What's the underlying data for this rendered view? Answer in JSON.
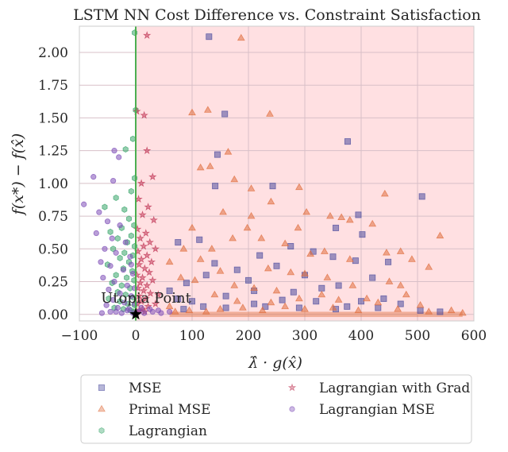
{
  "chart_data": {
    "type": "scatter",
    "title": "LSTM NN Cost Difference vs. Constraint Satisfaction",
    "xlabel": "λ̂ · g(x̂)",
    "ylabel": "f(x*) − f(x̂)",
    "xlim": [
      -100,
      600
    ],
    "ylim": [
      -0.05,
      2.2
    ],
    "xticks": [
      -100,
      0,
      100,
      200,
      300,
      400,
      500,
      600
    ],
    "yticks": [
      0.0,
      0.25,
      0.5,
      0.75,
      1.0,
      1.25,
      1.5,
      1.75,
      2.0
    ],
    "xtick_labels": [
      "−100",
      "0",
      "100",
      "200",
      "300",
      "400",
      "500",
      "600"
    ],
    "ytick_labels": [
      "0.00",
      "0.25",
      "0.50",
      "0.75",
      "1.00",
      "1.25",
      "1.50",
      "1.75",
      "2.00"
    ],
    "grid": true,
    "infeasible_region": {
      "x_from": 0,
      "x_to": 600,
      "color": "#ffe0e2"
    },
    "vertical_line": {
      "x": 0,
      "color": "#4caf50"
    },
    "annotation": {
      "text": "Utopia Point",
      "x": 0,
      "y": 0
    },
    "legend_position": "below",
    "series": [
      {
        "name": "MSE",
        "marker": "square",
        "color": "#4c4c9e",
        "points": [
          [
            130,
            2.12
          ],
          [
            158,
            1.53
          ],
          [
            376,
            1.32
          ],
          [
            145,
            1.22
          ],
          [
            243,
            0.98
          ],
          [
            141,
            0.98
          ],
          [
            508,
            0.9
          ],
          [
            395,
            0.76
          ],
          [
            355,
            0.66
          ],
          [
            402,
            0.61
          ],
          [
            75,
            0.55
          ],
          [
            113,
            0.57
          ],
          [
            220,
            0.45
          ],
          [
            315,
            0.48
          ],
          [
            350,
            0.44
          ],
          [
            390,
            0.41
          ],
          [
            275,
            0.52
          ],
          [
            250,
            0.37
          ],
          [
            180,
            0.34
          ],
          [
            140,
            0.39
          ],
          [
            90,
            0.24
          ],
          [
            420,
            0.28
          ],
          [
            448,
            0.4
          ],
          [
            330,
            0.2
          ],
          [
            360,
            0.22
          ],
          [
            280,
            0.17
          ],
          [
            210,
            0.18
          ],
          [
            160,
            0.14
          ],
          [
            440,
            0.12
          ],
          [
            470,
            0.08
          ],
          [
            400,
            0.1
          ],
          [
            320,
            0.1
          ],
          [
            260,
            0.11
          ],
          [
            100,
            0.1
          ],
          [
            75,
            0.12
          ],
          [
            60,
            0.18
          ],
          [
            125,
            0.3
          ],
          [
            200,
            0.26
          ],
          [
            300,
            0.3
          ],
          [
            375,
            0.06
          ],
          [
            505,
            0.03
          ],
          [
            540,
            0.02
          ],
          [
            430,
            0.05
          ],
          [
            355,
            0.04
          ],
          [
            290,
            0.05
          ],
          [
            230,
            0.06
          ],
          [
            160,
            0.05
          ],
          [
            120,
            0.06
          ],
          [
            85,
            0.04
          ],
          [
            210,
            0.08
          ]
        ]
      },
      {
        "name": "Primal MSE",
        "marker": "triangle",
        "color": "#e07040",
        "points": [
          [
            187,
            2.11
          ],
          [
            128,
            1.56
          ],
          [
            100,
            1.54
          ],
          [
            238,
            1.53
          ],
          [
            164,
            1.24
          ],
          [
            132,
            1.13
          ],
          [
            115,
            1.12
          ],
          [
            175,
            1.03
          ],
          [
            290,
            0.97
          ],
          [
            205,
            0.96
          ],
          [
            442,
            0.92
          ],
          [
            240,
            0.86
          ],
          [
            155,
            0.78
          ],
          [
            205,
            0.75
          ],
          [
            303,
            0.78
          ],
          [
            345,
            0.75
          ],
          [
            365,
            0.74
          ],
          [
            380,
            0.72
          ],
          [
            100,
            0.66
          ],
          [
            198,
            0.66
          ],
          [
            288,
            0.66
          ],
          [
            420,
            0.69
          ],
          [
            540,
            0.6
          ],
          [
            172,
            0.58
          ],
          [
            85,
            0.5
          ],
          [
            135,
            0.5
          ],
          [
            223,
            0.58
          ],
          [
            265,
            0.54
          ],
          [
            310,
            0.46
          ],
          [
            335,
            0.48
          ],
          [
            380,
            0.42
          ],
          [
            445,
            0.47
          ],
          [
            470,
            0.48
          ],
          [
            490,
            0.42
          ],
          [
            520,
            0.36
          ],
          [
            60,
            0.4
          ],
          [
            115,
            0.42
          ],
          [
            150,
            0.33
          ],
          [
            235,
            0.35
          ],
          [
            275,
            0.32
          ],
          [
            300,
            0.31
          ],
          [
            340,
            0.28
          ],
          [
            385,
            0.22
          ],
          [
            450,
            0.25
          ],
          [
            480,
            0.15
          ],
          [
            470,
            0.22
          ],
          [
            80,
            0.28
          ],
          [
            105,
            0.26
          ],
          [
            175,
            0.22
          ],
          [
            210,
            0.2
          ],
          [
            250,
            0.18
          ],
          [
            330,
            0.15
          ],
          [
            360,
            0.11
          ],
          [
            410,
            0.12
          ],
          [
            430,
            0.09
          ],
          [
            505,
            0.07
          ],
          [
            560,
            0.03
          ],
          [
            520,
            0.02
          ],
          [
            465,
            0.04
          ],
          [
            395,
            0.03
          ],
          [
            350,
            0.05
          ],
          [
            300,
            0.04
          ],
          [
            265,
            0.06
          ],
          [
            225,
            0.03
          ],
          [
            190,
            0.05
          ],
          [
            150,
            0.04
          ],
          [
            125,
            0.02
          ],
          [
            95,
            0.03
          ],
          [
            70,
            0.02
          ],
          [
            240,
            0.09
          ],
          [
            290,
            0.12
          ],
          [
            180,
            0.1
          ],
          [
            140,
            0.15
          ],
          [
            60,
            0.06
          ],
          [
            580,
            0.01
          ]
        ]
      },
      {
        "name": "Lagrangian",
        "marker": "hexagon",
        "color": "#3aa66b",
        "points": [
          [
            -2,
            2.15
          ],
          [
            0,
            1.56
          ],
          [
            -5,
            1.34
          ],
          [
            -18,
            1.26
          ],
          [
            -2,
            1.04
          ],
          [
            -8,
            0.94
          ],
          [
            -35,
            0.89
          ],
          [
            -55,
            0.82
          ],
          [
            -20,
            0.8
          ],
          [
            -12,
            0.73
          ],
          [
            -3,
            0.68
          ],
          [
            -25,
            0.66
          ],
          [
            -45,
            0.63
          ],
          [
            -8,
            0.6
          ],
          [
            -32,
            0.58
          ],
          [
            -15,
            0.55
          ],
          [
            -2,
            0.52
          ],
          [
            -40,
            0.5
          ],
          [
            -20,
            0.47
          ],
          [
            -5,
            0.45
          ],
          [
            -28,
            0.43
          ],
          [
            -12,
            0.4
          ],
          [
            -50,
            0.38
          ],
          [
            -22,
            0.35
          ],
          [
            -6,
            0.33
          ],
          [
            -35,
            0.3
          ],
          [
            -16,
            0.28
          ],
          [
            -3,
            0.26
          ],
          [
            -42,
            0.24
          ],
          [
            -25,
            0.22
          ],
          [
            -10,
            0.2
          ],
          [
            -32,
            0.17
          ],
          [
            -18,
            0.15
          ],
          [
            -5,
            0.13
          ],
          [
            -48,
            0.12
          ],
          [
            -28,
            0.1
          ],
          [
            -14,
            0.08
          ],
          [
            -2,
            0.07
          ],
          [
            -38,
            0.05
          ],
          [
            -22,
            0.04
          ],
          [
            -9,
            0.03
          ],
          [
            -4,
            0.02
          ],
          [
            -1,
            0.01
          ]
        ]
      },
      {
        "name": "Lagrangian with Grad",
        "marker": "star",
        "color": "#c23b5a",
        "points": [
          [
            20,
            2.13
          ],
          [
            2,
            1.55
          ],
          [
            15,
            1.52
          ],
          [
            20,
            1.25
          ],
          [
            10,
            1.0
          ],
          [
            30,
            1.05
          ],
          [
            5,
            0.88
          ],
          [
            22,
            0.82
          ],
          [
            12,
            0.76
          ],
          [
            32,
            0.72
          ],
          [
            3,
            0.65
          ],
          [
            18,
            0.62
          ],
          [
            8,
            0.58
          ],
          [
            25,
            0.55
          ],
          [
            14,
            0.52
          ],
          [
            35,
            0.5
          ],
          [
            4,
            0.48
          ],
          [
            20,
            0.45
          ],
          [
            10,
            0.42
          ],
          [
            28,
            0.4
          ],
          [
            6,
            0.38
          ],
          [
            16,
            0.35
          ],
          [
            24,
            0.32
          ],
          [
            2,
            0.3
          ],
          [
            12,
            0.28
          ],
          [
            30,
            0.26
          ],
          [
            8,
            0.24
          ],
          [
            20,
            0.22
          ],
          [
            4,
            0.2
          ],
          [
            14,
            0.18
          ],
          [
            26,
            0.16
          ],
          [
            6,
            0.14
          ],
          [
            18,
            0.12
          ],
          [
            10,
            0.1
          ],
          [
            3,
            0.08
          ],
          [
            22,
            0.06
          ],
          [
            12,
            0.04
          ],
          [
            6,
            0.03
          ],
          [
            2,
            0.02
          ],
          [
            16,
            0.02
          ],
          [
            40,
            0.15
          ],
          [
            35,
            0.08
          ]
        ]
      },
      {
        "name": "Lagrangian MSE",
        "marker": "circle",
        "color": "#8050b8",
        "points": [
          [
            -38,
            1.25
          ],
          [
            -30,
            1.2
          ],
          [
            -75,
            1.05
          ],
          [
            -40,
            1.02
          ],
          [
            -92,
            0.84
          ],
          [
            -65,
            0.78
          ],
          [
            -50,
            0.71
          ],
          [
            -28,
            0.68
          ],
          [
            -70,
            0.62
          ],
          [
            -42,
            0.58
          ],
          [
            -18,
            0.55
          ],
          [
            -55,
            0.5
          ],
          [
            -35,
            0.47
          ],
          [
            -10,
            0.44
          ],
          [
            -62,
            0.4
          ],
          [
            -45,
            0.37
          ],
          [
            -22,
            0.34
          ],
          [
            -5,
            0.31
          ],
          [
            -58,
            0.28
          ],
          [
            -38,
            0.25
          ],
          [
            -15,
            0.22
          ],
          [
            -48,
            0.19
          ],
          [
            -28,
            0.16
          ],
          [
            -8,
            0.14
          ],
          [
            -40,
            0.11
          ],
          [
            -20,
            0.09
          ],
          [
            -52,
            0.07
          ],
          [
            -32,
            0.05
          ],
          [
            -12,
            0.04
          ],
          [
            -45,
            0.02
          ],
          [
            -25,
            0.01
          ],
          [
            -5,
            0.01
          ],
          [
            5,
            0.02
          ],
          [
            15,
            0.01
          ],
          [
            30,
            0.02
          ],
          [
            45,
            0.01
          ],
          [
            60,
            0.02
          ],
          [
            10,
            0.05
          ],
          [
            -2,
            0.08
          ],
          [
            25,
            0.04
          ],
          [
            40,
            0.03
          ],
          [
            -15,
            0.03
          ],
          [
            -60,
            0.01
          ],
          [
            -35,
            0.02
          ],
          [
            -2,
            0.2
          ],
          [
            -8,
            0.38
          ]
        ]
      }
    ]
  }
}
